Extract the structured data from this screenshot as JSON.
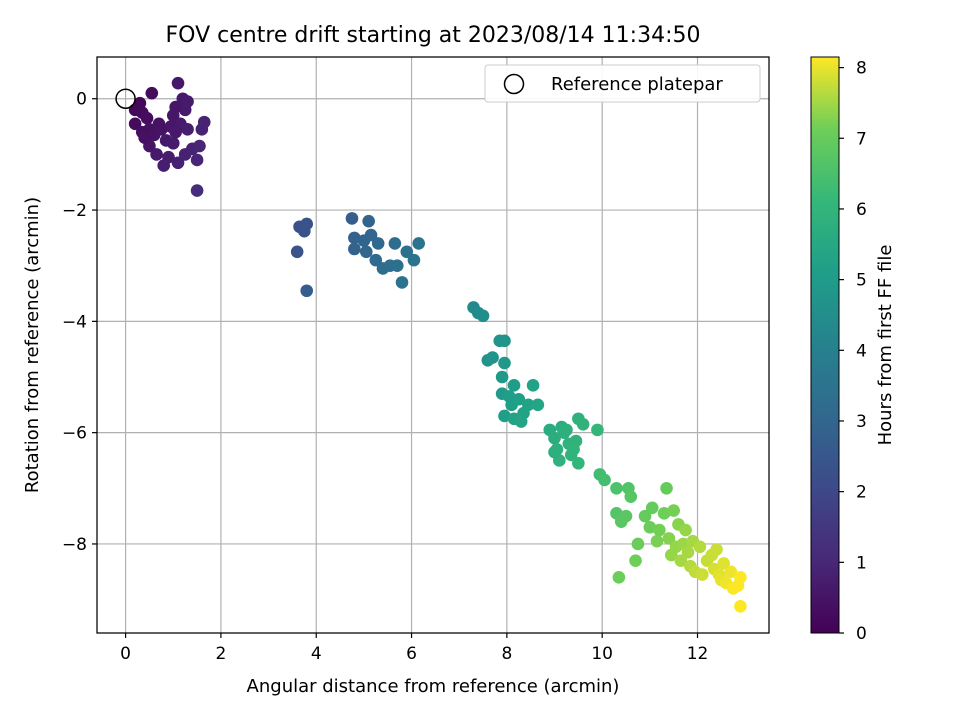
{
  "chart_data": {
    "type": "scatter",
    "title": "FOV centre drift starting at 2023/08/14 11:34:50",
    "xlabel": "Angular distance from reference (arcmin)",
    "ylabel": "Rotation from reference (arcmin)",
    "xlim": [
      -0.6,
      13.5
    ],
    "ylim": [
      -9.6,
      0.75
    ],
    "xticks": [
      0,
      2,
      4,
      6,
      8,
      10,
      12
    ],
    "yticks": [
      0,
      -2,
      -4,
      -6,
      -8
    ],
    "grid": true,
    "legend": {
      "placement": "top-right",
      "entries": [
        "Reference platepar"
      ]
    },
    "reference": {
      "x": 0,
      "y": 0
    },
    "colorbar": {
      "label": "Hours from first FF file",
      "colormap": "viridis",
      "range": [
        0,
        8.15
      ],
      "ticks": [
        0,
        1,
        2,
        3,
        4,
        5,
        6,
        7,
        8
      ]
    },
    "series": [
      {
        "points": [
          [
            1.1,
            0.28
          ],
          [
            1.2,
            0.0
          ],
          [
            1.3,
            -0.05
          ],
          [
            1.25,
            -0.2
          ],
          [
            1.05,
            -0.15
          ],
          [
            1.65,
            -0.42
          ],
          [
            1.0,
            -0.3
          ],
          [
            1.15,
            -0.45
          ],
          [
            0.95,
            -0.5
          ],
          [
            1.3,
            -0.55
          ],
          [
            0.3,
            -0.08
          ],
          [
            0.55,
            0.1
          ],
          [
            0.2,
            -0.2
          ],
          [
            0.35,
            -0.25
          ],
          [
            0.45,
            -0.35
          ],
          [
            0.2,
            -0.45
          ],
          [
            0.5,
            -0.55
          ],
          [
            0.35,
            -0.6
          ],
          [
            0.6,
            -0.65
          ],
          [
            0.75,
            -0.55
          ],
          [
            0.85,
            -0.75
          ],
          [
            1.0,
            -0.8
          ],
          [
            0.5,
            -0.85
          ],
          [
            0.65,
            -1.0
          ],
          [
            0.9,
            -1.05
          ],
          [
            1.1,
            -1.15
          ],
          [
            0.8,
            -1.2
          ],
          [
            1.25,
            -1.0
          ],
          [
            1.4,
            -0.9
          ],
          [
            1.5,
            -1.1
          ],
          [
            1.55,
            -0.85
          ],
          [
            1.6,
            -0.55
          ],
          [
            1.5,
            -1.65
          ],
          [
            0.4,
            -0.7
          ],
          [
            0.7,
            -0.45
          ],
          [
            1.05,
            -0.6
          ],
          [
            3.65,
            -2.3
          ],
          [
            3.75,
            -2.38
          ],
          [
            3.8,
            -2.25
          ],
          [
            3.6,
            -2.75
          ],
          [
            3.8,
            -3.45
          ],
          [
            4.75,
            -2.15
          ],
          [
            4.8,
            -2.5
          ],
          [
            4.8,
            -2.7
          ],
          [
            5.0,
            -2.55
          ],
          [
            5.05,
            -2.75
          ],
          [
            5.1,
            -2.2
          ],
          [
            5.15,
            -2.45
          ],
          [
            5.3,
            -2.6
          ],
          [
            5.25,
            -2.9
          ],
          [
            5.4,
            -3.05
          ],
          [
            5.55,
            -3.0
          ],
          [
            5.65,
            -2.6
          ],
          [
            5.7,
            -3.0
          ],
          [
            5.8,
            -3.3
          ],
          [
            5.9,
            -2.75
          ],
          [
            6.05,
            -2.9
          ],
          [
            6.15,
            -2.6
          ],
          [
            7.3,
            -3.75
          ],
          [
            7.4,
            -3.85
          ],
          [
            7.5,
            -3.9
          ],
          [
            7.6,
            -4.7
          ],
          [
            7.7,
            -4.65
          ],
          [
            7.85,
            -4.35
          ],
          [
            7.95,
            -4.35
          ],
          [
            7.95,
            -4.75
          ],
          [
            7.9,
            -5.0
          ],
          [
            7.9,
            -5.3
          ],
          [
            8.05,
            -5.35
          ],
          [
            8.1,
            -5.5
          ],
          [
            8.15,
            -5.15
          ],
          [
            7.95,
            -5.7
          ],
          [
            8.15,
            -5.75
          ],
          [
            8.25,
            -5.4
          ],
          [
            8.35,
            -5.65
          ],
          [
            8.45,
            -5.5
          ],
          [
            8.55,
            -5.15
          ],
          [
            8.65,
            -5.5
          ],
          [
            8.3,
            -5.8
          ],
          [
            8.9,
            -5.95
          ],
          [
            9.0,
            -6.1
          ],
          [
            9.05,
            -6.3
          ],
          [
            9.1,
            -6.5
          ],
          [
            9.15,
            -5.9
          ],
          [
            9.2,
            -6.0
          ],
          [
            9.3,
            -6.2
          ],
          [
            9.35,
            -6.4
          ],
          [
            9.45,
            -6.15
          ],
          [
            9.5,
            -5.75
          ],
          [
            9.5,
            -6.55
          ],
          [
            9.6,
            -5.85
          ],
          [
            9.0,
            -6.35
          ],
          [
            9.25,
            -5.95
          ],
          [
            9.4,
            -6.3
          ],
          [
            9.9,
            -5.95
          ],
          [
            9.95,
            -6.75
          ],
          [
            10.05,
            -6.85
          ],
          [
            10.3,
            -7.0
          ],
          [
            10.3,
            -7.45
          ],
          [
            10.4,
            -7.6
          ],
          [
            10.35,
            -8.6
          ],
          [
            10.55,
            -7.0
          ],
          [
            10.5,
            -7.5
          ],
          [
            10.6,
            -7.15
          ],
          [
            10.7,
            -8.3
          ],
          [
            10.75,
            -8.0
          ],
          [
            10.9,
            -7.5
          ],
          [
            11.0,
            -7.7
          ],
          [
            11.05,
            -7.35
          ],
          [
            11.15,
            -7.95
          ],
          [
            11.2,
            -7.75
          ],
          [
            11.3,
            -7.45
          ],
          [
            11.35,
            -7.0
          ],
          [
            11.4,
            -7.9
          ],
          [
            11.45,
            -8.2
          ],
          [
            11.5,
            -7.4
          ],
          [
            11.55,
            -8.05
          ],
          [
            11.6,
            -7.65
          ],
          [
            11.65,
            -8.3
          ],
          [
            11.7,
            -8.0
          ],
          [
            11.75,
            -7.75
          ],
          [
            11.8,
            -8.15
          ],
          [
            11.85,
            -8.4
          ],
          [
            11.9,
            -7.95
          ],
          [
            11.95,
            -8.5
          ],
          [
            12.05,
            -8.05
          ],
          [
            12.1,
            -8.55
          ],
          [
            12.2,
            -8.3
          ],
          [
            12.3,
            -8.2
          ],
          [
            12.35,
            -8.45
          ],
          [
            12.4,
            -8.1
          ],
          [
            12.45,
            -8.55
          ],
          [
            12.5,
            -8.65
          ],
          [
            12.55,
            -8.35
          ],
          [
            12.6,
            -8.7
          ],
          [
            12.7,
            -8.5
          ],
          [
            12.75,
            -8.8
          ],
          [
            12.85,
            -8.75
          ],
          [
            12.9,
            -8.6
          ],
          [
            12.9,
            -9.12
          ]
        ]
      }
    ],
    "colors": {
      "grid": "#b0b0b0",
      "axes": "#000000"
    }
  }
}
